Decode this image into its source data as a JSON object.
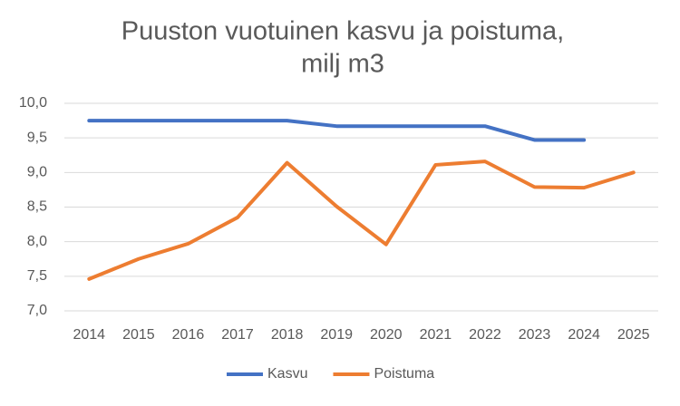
{
  "chart_data": {
    "type": "line",
    "title": [
      "Puuston vuotuinen kasvu ja poistuma,",
      "milj m3"
    ],
    "categories": [
      "2014",
      "2015",
      "2016",
      "2017",
      "2018",
      "2019",
      "2020",
      "2021",
      "2022",
      "2023",
      "2024",
      "2025"
    ],
    "series": [
      {
        "name": "Kasvu",
        "color": "#4472c4",
        "values": [
          9.75,
          9.75,
          9.75,
          9.75,
          9.75,
          9.67,
          9.67,
          9.67,
          9.67,
          9.47,
          9.47,
          null
        ]
      },
      {
        "name": "Poistuma",
        "color": "#ed7d31",
        "values": [
          7.46,
          7.75,
          7.97,
          8.35,
          9.14,
          8.51,
          7.96,
          9.11,
          9.16,
          8.79,
          8.78,
          9.0
        ]
      }
    ],
    "ylim": [
      7,
      10
    ],
    "yticks": [
      {
        "value": 7,
        "label": "7,0"
      },
      {
        "value": 7.5,
        "label": "7,5"
      },
      {
        "value": 8,
        "label": "8,0"
      },
      {
        "value": 8.5,
        "label": "8,5"
      },
      {
        "value": 9,
        "label": "9,0"
      },
      {
        "value": 9.5,
        "label": "9,5"
      },
      {
        "value": 10,
        "label": "10,0"
      }
    ],
    "grid": true,
    "legend": "bottom"
  }
}
